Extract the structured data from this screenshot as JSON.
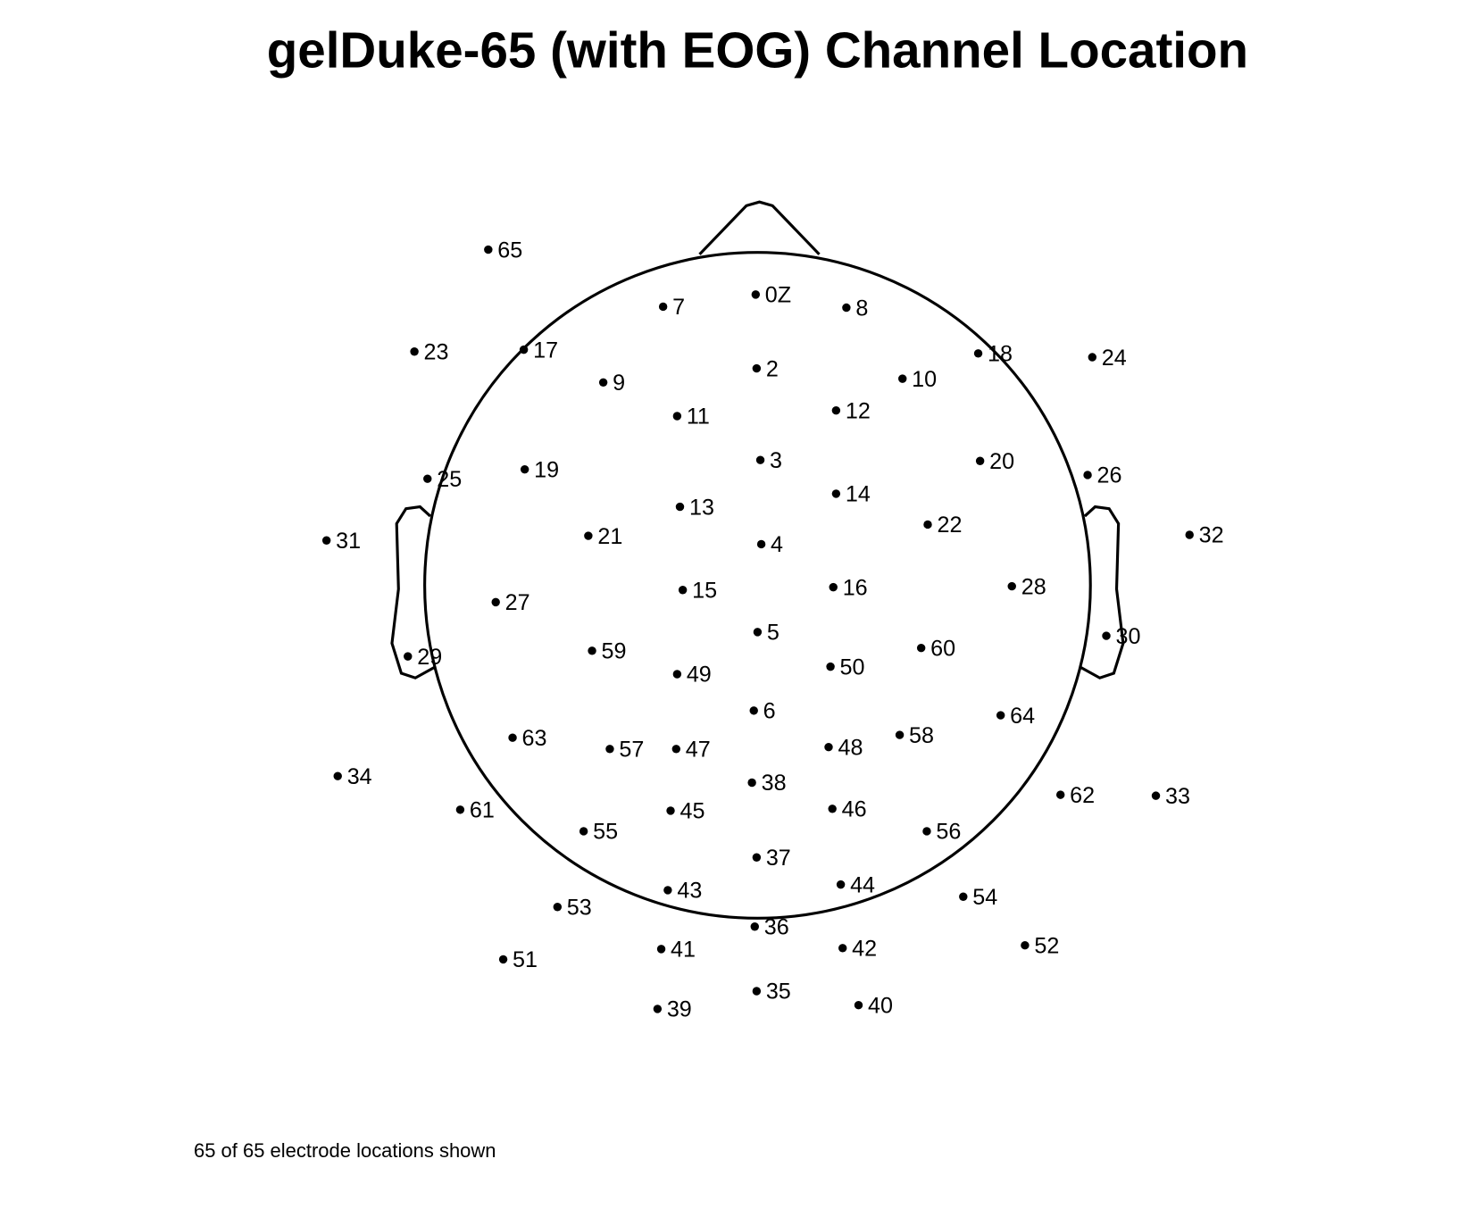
{
  "title": "gelDuke-65 (with EOG) Channel Location",
  "footer": "65 of 65 electrode locations shown",
  "nodes": [
    {
      "label": "65"
    },
    {
      "label": "0Z"
    },
    {
      "label": "7"
    },
    {
      "label": "8"
    },
    {
      "label": "23"
    },
    {
      "label": "17"
    },
    {
      "label": "18"
    },
    {
      "label": "24"
    },
    {
      "label": "2"
    },
    {
      "label": "9"
    },
    {
      "label": "10"
    },
    {
      "label": "11"
    },
    {
      "label": "12"
    },
    {
      "label": "3"
    },
    {
      "label": "20"
    },
    {
      "label": "19"
    },
    {
      "label": "25"
    },
    {
      "label": "26"
    },
    {
      "label": "14"
    },
    {
      "label": "13"
    },
    {
      "label": "22"
    },
    {
      "label": "21"
    },
    {
      "label": "32"
    },
    {
      "label": "31"
    },
    {
      "label": "4"
    },
    {
      "label": "16"
    },
    {
      "label": "28"
    },
    {
      "label": "15"
    },
    {
      "label": "27"
    },
    {
      "label": "5"
    },
    {
      "label": "30"
    },
    {
      "label": "60"
    },
    {
      "label": "59"
    },
    {
      "label": "29"
    },
    {
      "label": "50"
    },
    {
      "label": "49"
    },
    {
      "label": "6"
    },
    {
      "label": "64"
    },
    {
      "label": "58"
    },
    {
      "label": "63"
    },
    {
      "label": "48"
    },
    {
      "label": "57"
    },
    {
      "label": "47"
    },
    {
      "label": "34"
    },
    {
      "label": "38"
    },
    {
      "label": "62"
    },
    {
      "label": "33"
    },
    {
      "label": "46"
    },
    {
      "label": "61"
    },
    {
      "label": "45"
    },
    {
      "label": "55"
    },
    {
      "label": "56"
    },
    {
      "label": "37"
    },
    {
      "label": "44"
    },
    {
      "label": "43"
    },
    {
      "label": "54"
    },
    {
      "label": "53"
    },
    {
      "label": "36"
    },
    {
      "label": "52"
    },
    {
      "label": "42"
    },
    {
      "label": "41"
    },
    {
      "label": "51"
    },
    {
      "label": "35"
    },
    {
      "label": "40"
    },
    {
      "label": "39"
    }
  ]
}
